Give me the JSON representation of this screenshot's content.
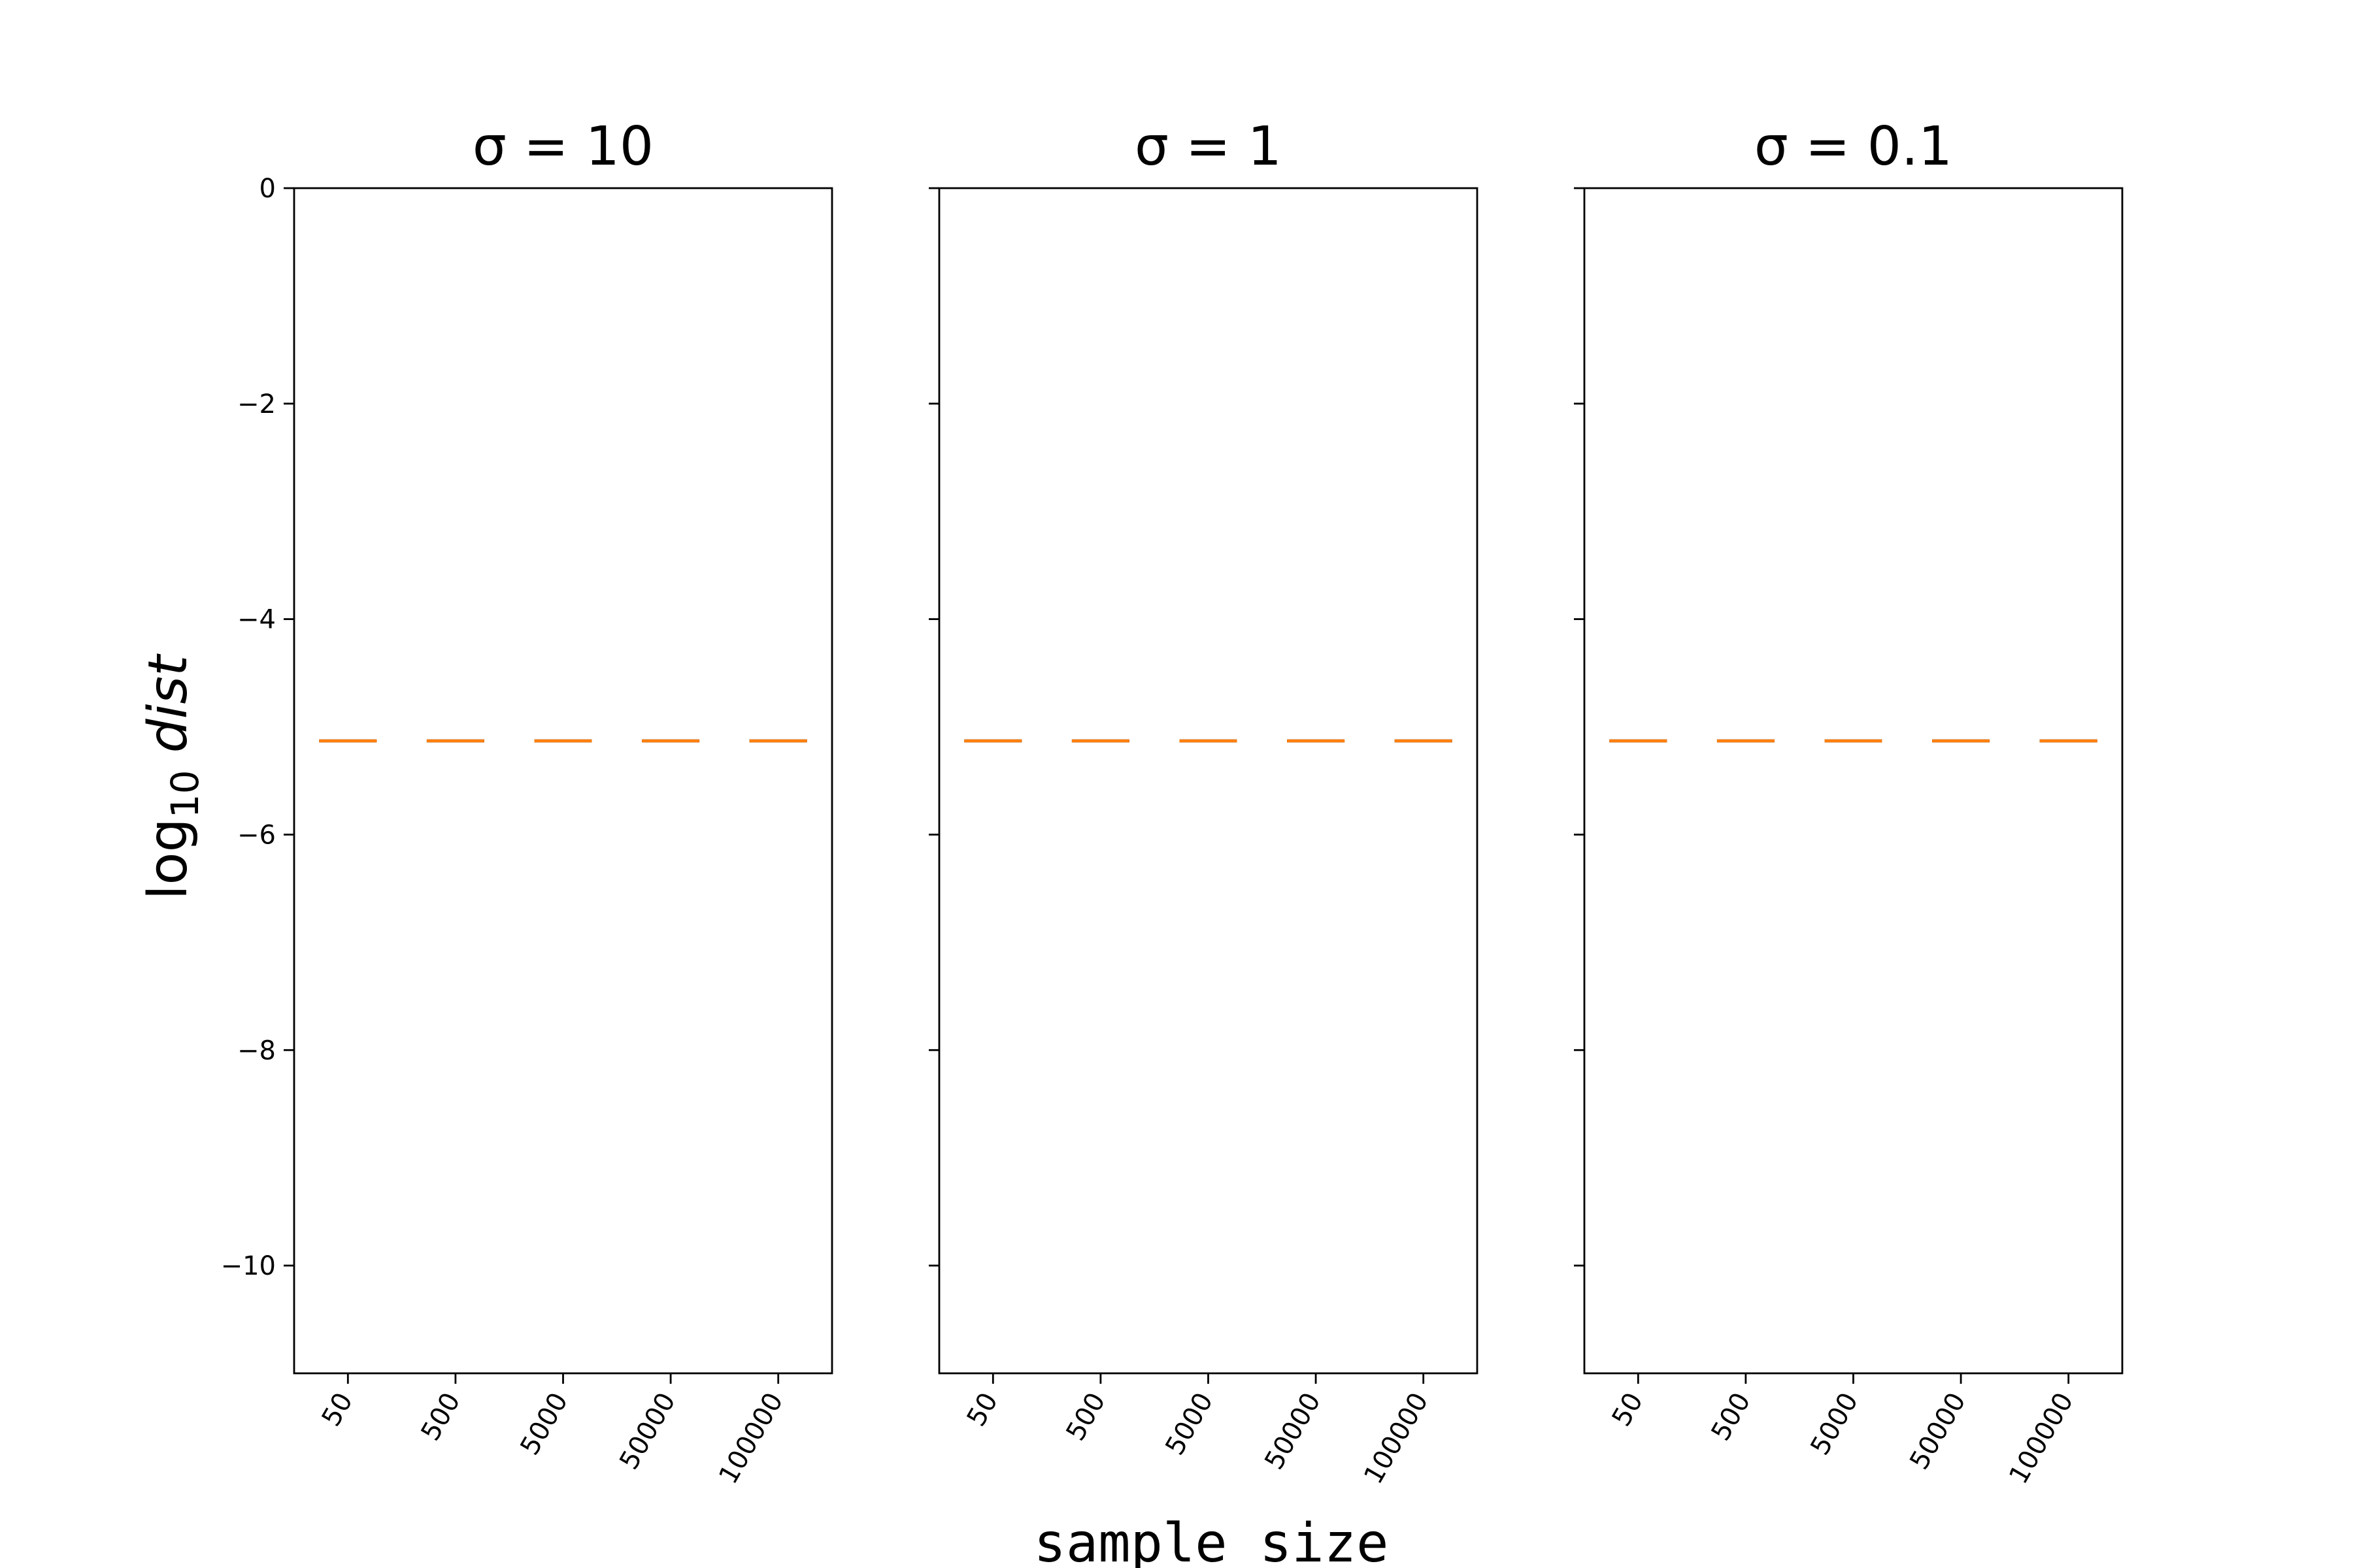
{
  "chart_data": {
    "type": "line",
    "ylabel": "log10 dist",
    "xlabel": "sample size",
    "shared_y": true,
    "ylim": [
      -11,
      0
    ],
    "yticks": [
      0,
      -2,
      -4,
      -6,
      -8,
      -10
    ],
    "ytick_labels": [
      "0",
      "−2",
      "−4",
      "−6",
      "−8",
      "−10"
    ],
    "categories": [
      "50",
      "500",
      "5000",
      "50000",
      "100000"
    ],
    "panels": [
      {
        "title": "σ = 10",
        "series": [
          {
            "values": [
              -5.13,
              -5.13,
              -5.13,
              -5.13,
              -5.13
            ],
            "color": "#000000",
            "style": "solid"
          },
          {
            "values": [
              -5.13,
              -5.13,
              -5.13,
              -5.13,
              -5.13
            ],
            "color": "#ff7f0e",
            "style": "dashed"
          }
        ]
      },
      {
        "title": "σ = 1",
        "series": [
          {
            "values": [
              -5.13,
              -5.13,
              -5.13,
              -5.13,
              -5.13
            ],
            "color": "#000000",
            "style": "solid"
          },
          {
            "values": [
              -5.13,
              -5.13,
              -5.13,
              -5.13,
              -5.13
            ],
            "color": "#ff7f0e",
            "style": "dashed"
          }
        ]
      },
      {
        "title": "σ = 0.1",
        "series": [
          {
            "values": [
              -5.13,
              -5.13,
              -5.13,
              -5.13,
              -5.13
            ],
            "color": "#000000",
            "style": "solid"
          },
          {
            "values": [
              -5.13,
              -5.13,
              -5.13,
              -5.13,
              -5.13
            ],
            "color": "#ff7f0e",
            "style": "dashed"
          }
        ]
      }
    ],
    "grid": false,
    "legend": "none"
  }
}
